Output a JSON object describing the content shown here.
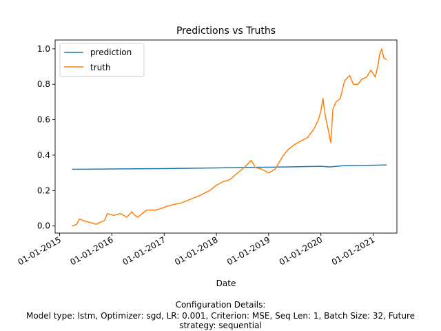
{
  "chart_data": {
    "type": "line",
    "title": "Predictions vs Truths",
    "xlabel": "Date",
    "ylabel": "",
    "x_tick_labels": [
      "01-01-2015",
      "01-01-2016",
      "01-01-2017",
      "01-01-2018",
      "01-01-2019",
      "01-01-2020",
      "01-01-2021"
    ],
    "x_ticks": [
      "2015-01-01",
      "2016-01-01",
      "2017-01-01",
      "2018-01-01",
      "2019-01-01",
      "2020-01-01",
      "2021-01-01"
    ],
    "xlim": [
      "2014-12-01",
      "2021-06-15"
    ],
    "y_tick_labels": [
      "0.0",
      "0.2",
      "0.4",
      "0.6",
      "0.8",
      "1.0"
    ],
    "y_ticks": [
      0.0,
      0.2,
      0.4,
      0.6,
      0.8,
      1.0
    ],
    "ylim": [
      -0.04,
      1.05
    ],
    "grid": false,
    "legend": "upper-left",
    "series": [
      {
        "name": "prediction",
        "color": "#1f77b4",
        "x": [
          "2015-04-01",
          "2016-01-01",
          "2017-01-01",
          "2018-01-01",
          "2019-01-01",
          "2019-07-01",
          "2020-01-01",
          "2020-03-01",
          "2020-06-01",
          "2021-01-01",
          "2021-04-01"
        ],
        "y": [
          0.32,
          0.322,
          0.324,
          0.328,
          0.332,
          0.334,
          0.337,
          0.333,
          0.34,
          0.343,
          0.345
        ]
      },
      {
        "name": "truth",
        "color": "#ff7f0e",
        "x": [
          "2015-04-01",
          "2015-05-01",
          "2015-05-20",
          "2015-06-15",
          "2015-08-01",
          "2015-09-15",
          "2015-10-10",
          "2015-11-10",
          "2015-12-01",
          "2016-01-15",
          "2016-03-01",
          "2016-04-15",
          "2016-05-20",
          "2016-06-10",
          "2016-07-01",
          "2016-09-01",
          "2016-11-01",
          "2016-12-15",
          "2017-01-15",
          "2017-03-01",
          "2017-05-01",
          "2017-07-01",
          "2017-09-01",
          "2017-11-15",
          "2018-01-01",
          "2018-02-15",
          "2018-04-01",
          "2018-05-15",
          "2018-07-15",
          "2018-09-01",
          "2018-10-01",
          "2018-11-15",
          "2019-01-01",
          "2019-02-15",
          "2019-03-15",
          "2019-04-15",
          "2019-05-15",
          "2019-06-15",
          "2019-07-01",
          "2019-08-15",
          "2019-10-01",
          "2019-11-15",
          "2019-12-15",
          "2020-01-01",
          "2020-01-15",
          "2020-02-01",
          "2020-02-20",
          "2020-03-10",
          "2020-03-25",
          "2020-04-15",
          "2020-05-15",
          "2020-06-15",
          "2020-07-20",
          "2020-08-15",
          "2020-09-15",
          "2020-10-15",
          "2020-11-15",
          "2020-12-15",
          "2021-01-15",
          "2021-02-01",
          "2021-02-15",
          "2021-03-01",
          "2021-03-15",
          "2021-04-01"
        ],
        "y": [
          0.0,
          0.01,
          0.04,
          0.03,
          0.02,
          0.01,
          0.02,
          0.03,
          0.07,
          0.06,
          0.07,
          0.05,
          0.08,
          0.06,
          0.05,
          0.09,
          0.09,
          0.1,
          0.11,
          0.12,
          0.13,
          0.15,
          0.17,
          0.2,
          0.23,
          0.25,
          0.26,
          0.29,
          0.33,
          0.37,
          0.33,
          0.32,
          0.3,
          0.32,
          0.36,
          0.4,
          0.43,
          0.45,
          0.46,
          0.48,
          0.5,
          0.55,
          0.6,
          0.65,
          0.72,
          0.62,
          0.55,
          0.47,
          0.66,
          0.7,
          0.72,
          0.82,
          0.85,
          0.8,
          0.8,
          0.83,
          0.84,
          0.88,
          0.84,
          0.9,
          0.97,
          1.0,
          0.95,
          0.94
        ]
      }
    ]
  },
  "footer": {
    "line1": "Configuration Details:",
    "line2": "Model type: lstm, Optimizer: sgd, LR: 0.001, Criterion: MSE, Seq Len: 1, Batch Size: 32, Future",
    "line3": "strategy: sequential"
  }
}
